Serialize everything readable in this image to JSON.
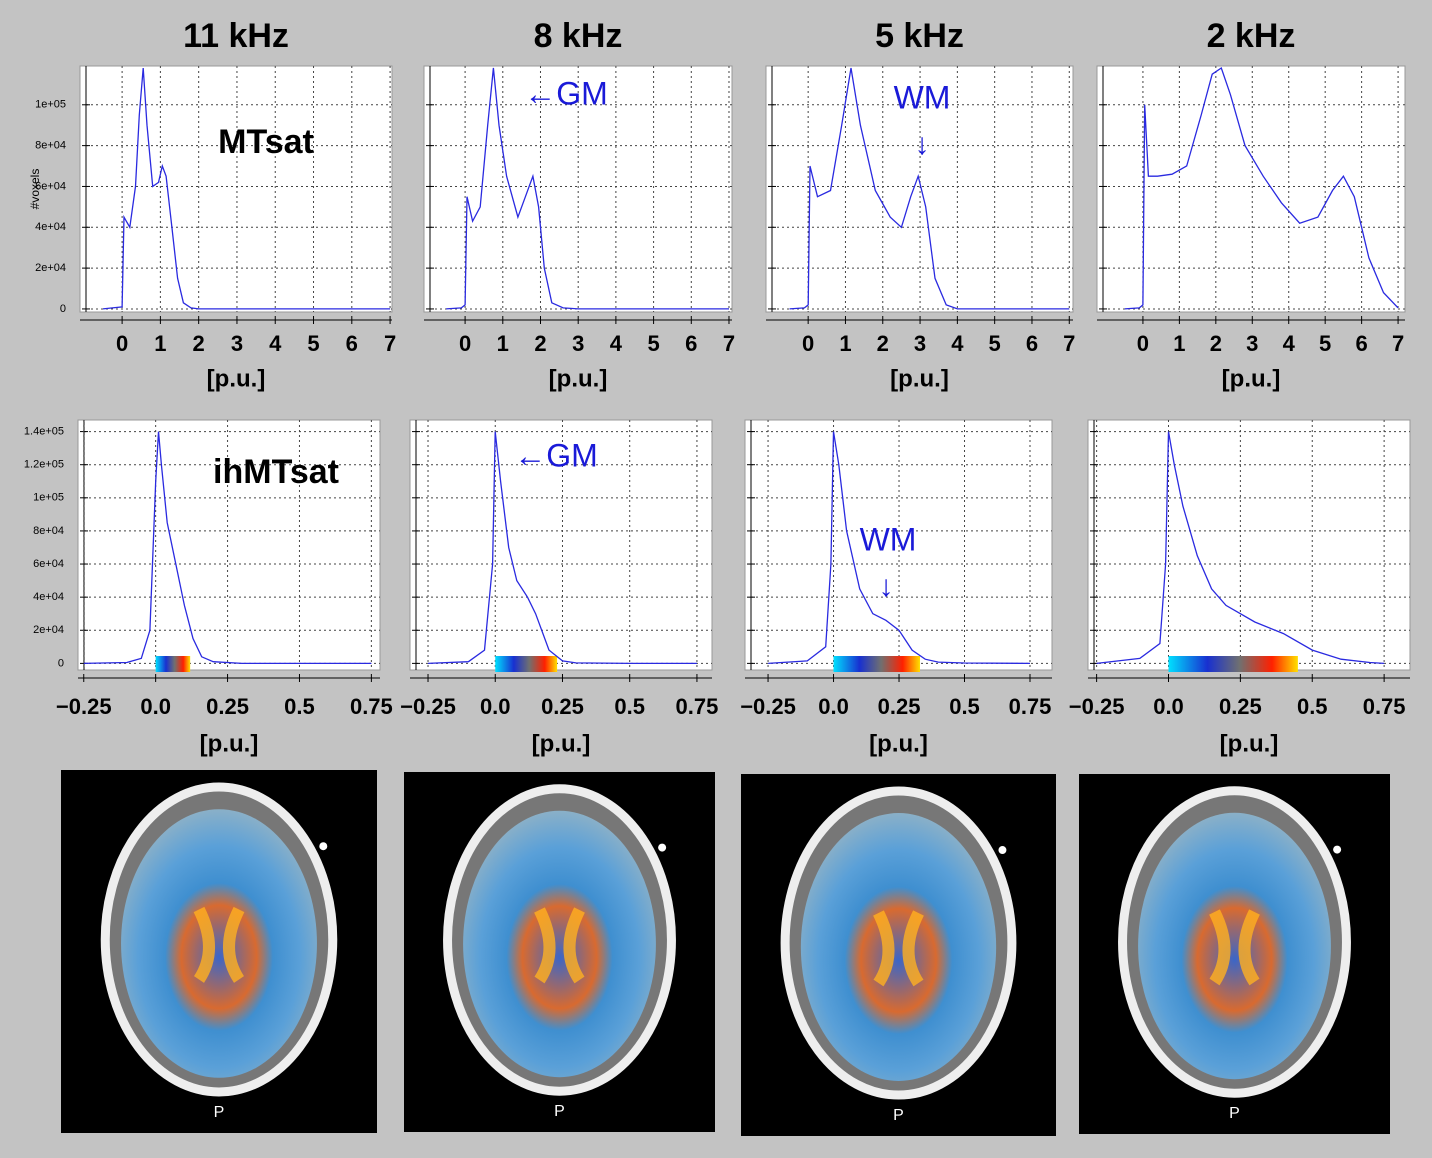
{
  "chart_data": [
    {
      "type": "line",
      "title": "11 kHz",
      "ylabel": "#voxels",
      "xlabel": "[p.u.]",
      "annotations": [
        "MTsat"
      ],
      "color": "#2a2ae0",
      "grid": true,
      "ytick_labels": true,
      "x": [
        -0.5,
        -0.25,
        0,
        0.05,
        0.2,
        0.35,
        0.45,
        0.55,
        0.65,
        0.8,
        0.95,
        1.05,
        1.15,
        1.3,
        1.45,
        1.6,
        1.8,
        2,
        3,
        4,
        5,
        6,
        7
      ],
      "values": [
        0,
        500,
        1000,
        45000,
        40000,
        60000,
        95000,
        118000,
        90000,
        60000,
        62000,
        70000,
        65000,
        40000,
        15000,
        3000,
        500,
        0,
        0,
        0,
        0,
        0,
        0
      ],
      "xlim": [
        -1.1,
        7.05
      ],
      "xticks": [
        0,
        1,
        2,
        3,
        4,
        5,
        6,
        7
      ],
      "ylim": [
        -1500,
        119000
      ],
      "yticks": [
        {
          "value": 0,
          "label": "0"
        },
        {
          "value": 20000,
          "label": "2e+04"
        },
        {
          "value": 40000,
          "label": "4e+04"
        },
        {
          "value": 60000,
          "label": "6e+04"
        },
        {
          "value": 80000,
          "label": "8e+04"
        },
        {
          "value": 100000,
          "label": "1e+05"
        }
      ]
    },
    {
      "type": "line",
      "title": "8 kHz",
      "xlabel": "[p.u.]",
      "annotations": [
        "←GM"
      ],
      "color": "#2a2ae0",
      "grid": true,
      "ytick_labels": false,
      "x": [
        -0.5,
        -0.1,
        0,
        0.05,
        0.2,
        0.4,
        0.6,
        0.75,
        0.9,
        1.1,
        1.4,
        1.6,
        1.8,
        1.95,
        2.1,
        2.3,
        2.6,
        3,
        4,
        5,
        6,
        7
      ],
      "values": [
        0,
        500,
        2000,
        55000,
        43000,
        50000,
        90000,
        118000,
        90000,
        65000,
        45000,
        55000,
        65000,
        50000,
        20000,
        3000,
        500,
        0,
        0,
        0,
        0,
        0
      ],
      "xlim": [
        -1.09,
        7.08
      ],
      "xticks": [
        0,
        1,
        2,
        3,
        4,
        5,
        6,
        7
      ],
      "ylim": [
        -1500,
        119000
      ],
      "yticks": [
        0,
        20000,
        40000,
        60000,
        80000,
        100000
      ]
    },
    {
      "type": "line",
      "title": "5 kHz",
      "xlabel": "[p.u.]",
      "annotations": [
        "WM",
        "↓"
      ],
      "color": "#2a2ae0",
      "grid": true,
      "ytick_labels": false,
      "x": [
        -0.5,
        -0.1,
        0,
        0.05,
        0.25,
        0.6,
        0.9,
        1.15,
        1.4,
        1.8,
        2.2,
        2.5,
        2.75,
        2.95,
        3.15,
        3.4,
        3.7,
        4,
        5,
        6,
        7
      ],
      "values": [
        0,
        500,
        2000,
        70000,
        55000,
        58000,
        90000,
        118000,
        90000,
        58000,
        45000,
        40000,
        55000,
        65000,
        50000,
        15000,
        2000,
        0,
        0,
        0,
        0
      ],
      "xlim": [
        -1.13,
        7.1
      ],
      "xticks": [
        0,
        1,
        2,
        3,
        4,
        5,
        6,
        7
      ],
      "ylim": [
        -1500,
        119000
      ],
      "yticks": [
        0,
        20000,
        40000,
        60000,
        80000,
        100000
      ]
    },
    {
      "type": "line",
      "title": "2 kHz",
      "xlabel": "[p.u.]",
      "annotations": [],
      "color": "#2a2ae0",
      "grid": true,
      "ytick_labels": false,
      "x": [
        -0.5,
        -0.1,
        0,
        0.05,
        0.15,
        0.4,
        0.8,
        1.2,
        1.6,
        1.9,
        2.15,
        2.4,
        2.8,
        3.3,
        3.8,
        4.3,
        4.8,
        5.2,
        5.5,
        5.8,
        6.2,
        6.6,
        7
      ],
      "values": [
        0,
        500,
        2000,
        100000,
        65000,
        65000,
        66000,
        70000,
        95000,
        115000,
        118000,
        105000,
        80000,
        65000,
        52000,
        42000,
        45000,
        58000,
        65000,
        55000,
        25000,
        8000,
        500
      ],
      "xlim": [
        -1.26,
        7.19
      ],
      "xticks": [
        0,
        1,
        2,
        3,
        4,
        5,
        6,
        7
      ],
      "ylim": [
        -1500,
        119000
      ],
      "yticks": [
        0,
        20000,
        40000,
        60000,
        80000,
        100000
      ]
    },
    {
      "type": "line",
      "xlabel": "[p.u.]",
      "annotations": [
        "ihMTsat"
      ],
      "color": "#2a2ae0",
      "grid": true,
      "ytick_labels": true,
      "colorbar": [
        0,
        0.12
      ],
      "x": [
        -0.25,
        -0.1,
        -0.05,
        -0.02,
        0,
        0.01,
        0.02,
        0.04,
        0.07,
        0.1,
        0.13,
        0.16,
        0.2,
        0.3,
        0.5,
        0.75
      ],
      "values": [
        0,
        500,
        3000,
        20000,
        110000,
        140000,
        120000,
        85000,
        60000,
        35000,
        15000,
        4000,
        1000,
        0,
        0,
        0
      ],
      "xlim": [
        -0.27,
        0.78
      ],
      "ylim": [
        -4000,
        147000
      ],
      "xticks": [
        {
          "value": -0.25,
          "label": "−0.25"
        },
        {
          "value": 0,
          "label": "0.0"
        },
        0.25,
        0.5,
        0.75
      ],
      "yticks": [
        {
          "value": 0,
          "label": "0"
        },
        {
          "value": 20000,
          "label": "2e+04"
        },
        {
          "value": 40000,
          "label": "4e+04"
        },
        {
          "value": 60000,
          "label": "6e+04"
        },
        {
          "value": 80000,
          "label": "8e+04"
        },
        {
          "value": 100000,
          "label": "1e+05"
        },
        {
          "value": 120000,
          "label": "1.2e+05"
        },
        {
          "value": 140000,
          "label": "1.4e+05"
        }
      ]
    },
    {
      "type": "line",
      "xlabel": "[p.u.]",
      "annotations": [
        "←GM"
      ],
      "color": "#2a2ae0",
      "grid": true,
      "ytick_labels": false,
      "colorbar": [
        0,
        0.23
      ],
      "x": [
        -0.25,
        -0.1,
        -0.04,
        -0.01,
        0,
        0.02,
        0.05,
        0.08,
        0.12,
        0.15,
        0.2,
        0.25,
        0.3,
        0.5,
        0.75
      ],
      "values": [
        0,
        1000,
        8000,
        60000,
        140000,
        110000,
        70000,
        50000,
        40000,
        30000,
        8000,
        1500,
        300,
        0,
        0
      ],
      "xlim": [
        -0.317,
        0.806
      ],
      "ylim": [
        -4000,
        147000
      ],
      "xticks": [
        {
          "value": -0.25,
          "label": "−0.25"
        },
        {
          "value": 0,
          "label": "0.0"
        },
        0.25,
        0.5,
        0.75
      ],
      "yticks": [
        0,
        20000,
        40000,
        60000,
        80000,
        100000,
        120000,
        140000
      ]
    },
    {
      "type": "line",
      "xlabel": "[p.u.]",
      "annotations": [
        "WM",
        "↓"
      ],
      "color": "#2a2ae0",
      "grid": true,
      "ytick_labels": false,
      "colorbar": [
        0,
        0.33
      ],
      "x": [
        -0.25,
        -0.1,
        -0.03,
        -0.01,
        0,
        0.02,
        0.05,
        0.1,
        0.15,
        0.2,
        0.25,
        0.3,
        0.35,
        0.4,
        0.5,
        0.75
      ],
      "values": [
        0,
        1500,
        10000,
        60000,
        140000,
        120000,
        80000,
        45000,
        30000,
        26000,
        20000,
        8000,
        2500,
        800,
        200,
        0
      ],
      "xlim": [
        -0.338,
        0.834
      ],
      "ylim": [
        -4000,
        147000
      ],
      "xticks": [
        {
          "value": -0.25,
          "label": "−0.25"
        },
        {
          "value": 0,
          "label": "0.0"
        },
        0.25,
        0.5,
        0.75
      ],
      "yticks": [
        0,
        20000,
        40000,
        60000,
        80000,
        100000,
        120000,
        140000
      ]
    },
    {
      "type": "line",
      "xlabel": "[p.u.]",
      "annotations": [],
      "color": "#2a2ae0",
      "grid": true,
      "ytick_labels": false,
      "colorbar": [
        0,
        0.45
      ],
      "x": [
        -0.25,
        -0.1,
        -0.03,
        -0.01,
        0,
        0.02,
        0.05,
        0.1,
        0.15,
        0.2,
        0.3,
        0.4,
        0.5,
        0.6,
        0.7,
        0.75
      ],
      "values": [
        0,
        3000,
        12000,
        60000,
        140000,
        120000,
        95000,
        65000,
        45000,
        35000,
        25000,
        18000,
        8000,
        2500,
        500,
        0
      ],
      "xlim": [
        -0.28,
        0.84
      ],
      "ylim": [
        -4000,
        147000
      ],
      "xticks": [
        {
          "value": -0.25,
          "label": "−0.25"
        },
        {
          "value": 0,
          "label": "0.0"
        },
        0.25,
        0.5,
        0.75
      ],
      "yticks": [
        0,
        20000,
        40000,
        60000,
        80000,
        100000,
        120000,
        140000
      ]
    }
  ],
  "images": [
    {
      "label": "P"
    },
    {
      "label": "P"
    },
    {
      "label": "P"
    },
    {
      "label": "P"
    }
  ]
}
